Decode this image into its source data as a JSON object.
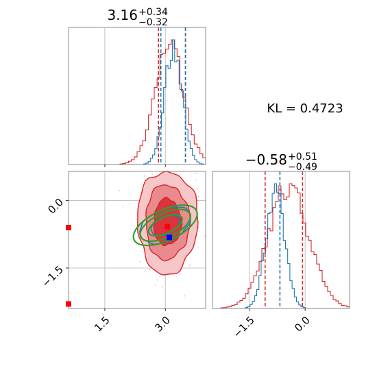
{
  "chart_data": {
    "type": "corner",
    "parameters": [
      {
        "title_value": "3.16",
        "title_upper": "+0.34",
        "title_lower": "−0.32",
        "xlim": [
          0.6,
          4.0
        ],
        "grid": true,
        "x_ticks": [
          {
            "value": 1.5,
            "label": "1.5"
          },
          {
            "value": 3.0,
            "label": "3.0"
          }
        ],
        "histogram_1": {
          "color": "#d62728",
          "mean": 3.1,
          "sd": 0.36
        },
        "histogram_2": {
          "color": "#1f77b4",
          "mean": 3.2,
          "sd": 0.22
        },
        "quantile_lines_1": [
          2.83,
          3.5
        ],
        "quantile_lines_2": [
          2.89,
          3.5
        ]
      },
      {
        "title_value": "−0.58",
        "title_upper": "+0.51",
        "title_lower": "−0.49",
        "xlim": [
          -2.5,
          1.2
        ],
        "grid": true,
        "x_ticks": [
          {
            "value": -1.5,
            "label": "−1.5"
          },
          {
            "value": 0.0,
            "label": "0.0"
          }
        ],
        "histogram_1": {
          "color": "#d62728",
          "mean": -0.45,
          "sd": 0.55
        },
        "histogram_2": {
          "color": "#1f77b4",
          "mean": -0.8,
          "sd": 0.25
        },
        "quantile_lines_1": [
          -1.08,
          -0.07
        ],
        "quantile_lines_2": [
          -0.68
        ]
      }
    ],
    "joint": {
      "xlim": [
        0.6,
        4.0
      ],
      "ylim": [
        -2.4,
        0.65
      ],
      "y_ticks": [
        {
          "value": 0.0,
          "label": "0.0"
        },
        {
          "value": -1.5,
          "label": "−1.5"
        }
      ],
      "red_contours": {
        "color": "#d62728",
        "center": [
          3.05,
          -0.48
        ],
        "sd": [
          0.34,
          0.52
        ],
        "levels": [
          1.0,
          1.6,
          2.2
        ]
      },
      "blue_contours": {
        "color": "#1f77b4",
        "center": [
          3.0,
          -0.55
        ],
        "sd": [
          0.42,
          0.22
        ],
        "angle_deg": -25,
        "levels": [
          0.9,
          1.6
        ]
      },
      "green_contours": {
        "color": "#2ca02c",
        "center": [
          3.0,
          -0.55
        ],
        "sd": [
          0.45,
          0.18
        ],
        "angle_deg": -25,
        "levels": [
          1.0,
          1.5,
          1.9
        ]
      },
      "markers": [
        {
          "x": 3.05,
          "y": -0.58,
          "color": "#ff0000"
        },
        {
          "x": 3.1,
          "y": -0.82,
          "color": "#0000ff"
        },
        {
          "x": 0.6,
          "y": -0.6,
          "color": "#ff0000"
        },
        {
          "x": 0.6,
          "y": -2.3,
          "color": "#ff0000"
        }
      ]
    },
    "annotation": "KL = 0.4723"
  }
}
